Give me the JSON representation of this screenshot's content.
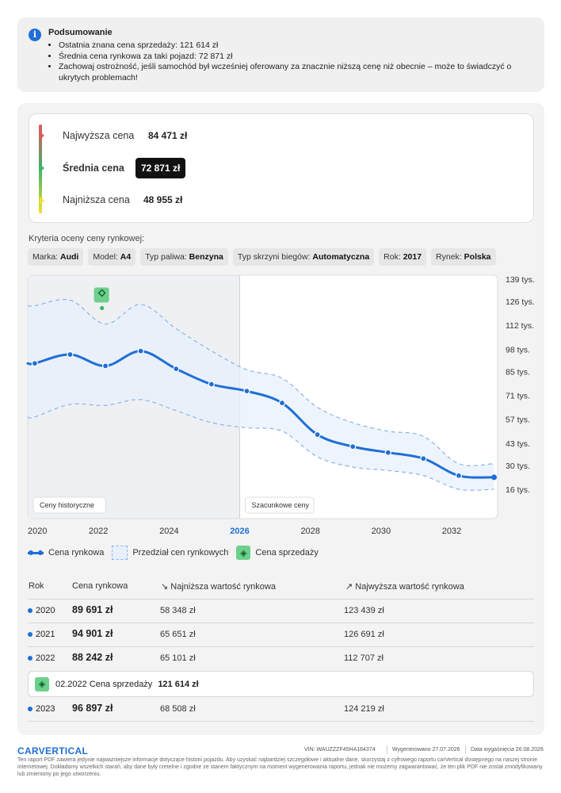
{
  "summary": {
    "title": "Podsumowanie",
    "items": [
      "Ostatnia znana cena sprzedaży: 121 614 zł",
      "Średnia cena rynkowa za taki pojazd: 72 871 zł",
      "Zachowaj ostrożność, jeśli samochód był wcześniej oferowany za znacznie niższą cenę niż obecnie – może to świadczyć o ukrytych problemach!"
    ]
  },
  "prices": {
    "highest_label": "Najwyższa cena",
    "highest_value": "84 471 zł",
    "average_label": "Średnia cena",
    "average_value": "72 871 zł",
    "lowest_label": "Najniższa cena",
    "lowest_value": "48 955 zł",
    "colors": {
      "high": "#e35656",
      "mid": "#3db36b",
      "low": "#f1df2c"
    }
  },
  "criteria": {
    "title": "Kryteria oceny ceny rynkowej:",
    "chips": [
      {
        "label": "Marka:",
        "value": "Audi"
      },
      {
        "label": "Model:",
        "value": "A4"
      },
      {
        "label": "Typ paliwa:",
        "value": "Benzyna"
      },
      {
        "label": "Typ skrzyni biegów:",
        "value": "Automatyczna"
      },
      {
        "label": "Rok:",
        "value": "2017"
      },
      {
        "label": "Rynek:",
        "value": "Polska"
      }
    ]
  },
  "chart_data": {
    "type": "line",
    "x_ticks": [
      "2020",
      "2022",
      "2024",
      "2026",
      "2028",
      "2030",
      "2032"
    ],
    "y_ticks": [
      "139 tys.",
      "126 tys.",
      "112 tys.",
      "98 tys.",
      "85 tys.",
      "71 tys.",
      "57 tys.",
      "43 tys.",
      "30 tys.",
      "16 tys."
    ],
    "y_tick_values": [
      139,
      126,
      112,
      98,
      85,
      71,
      57,
      43,
      30,
      16
    ],
    "xlim": [
      2020,
      2033.3
    ],
    "current_year": "2026",
    "historical_label": "Ceny historyczne",
    "forecast_label": "Szacunkowe ceny",
    "series": [
      {
        "name": "Cena rynkowa",
        "x": [
          2020,
          2020.2,
          2021.2,
          2022.2,
          2023.2,
          2024.2,
          2025.2,
          2026.2,
          2027.2,
          2028.2,
          2029.2,
          2030.2,
          2031.2,
          2032.2,
          2033.2
        ],
        "values": [
          89.7,
          89.7,
          94.9,
          88.2,
          96.9,
          86.5,
          77.5,
          73.5,
          66.5,
          48,
          41,
          37.5,
          34,
          24,
          23
        ]
      }
    ],
    "range": {
      "name": "Przedział cen rynkowych",
      "x": [
        2020,
        2020.2,
        2021.2,
        2022.2,
        2023.2,
        2024.2,
        2025.2,
        2026.2,
        2027.2,
        2028.2,
        2029.2,
        2030.2,
        2031.2,
        2032.2,
        2033.2
      ],
      "low": [
        58.3,
        58.3,
        65.7,
        65.1,
        68.5,
        62,
        55,
        52,
        50,
        35,
        29,
        27,
        24,
        16,
        16
      ],
      "high": [
        123.4,
        123.4,
        126.7,
        112.7,
        124.2,
        110,
        97,
        86,
        81,
        64,
        55,
        50,
        47,
        31,
        31
      ]
    },
    "sale_points": [
      {
        "name": "Cena sprzedaży",
        "x": 2022.1,
        "y": 121.6
      }
    ],
    "colors": {
      "line": "#1f6fd6",
      "band": "#e8f0fb",
      "band_edge": "#8ab4ea",
      "sale": "#6cd08a",
      "historical_bg": "#eef0f3"
    }
  },
  "legend": {
    "line": "Cena rynkowa",
    "band": "Przedział cen rynkowych",
    "sale": "Cena sprzedaży"
  },
  "table": {
    "headers": {
      "year": "Rok",
      "price": "Cena rynkowa",
      "low": "Najniższa wartość rynkowa",
      "high": "Najwyższa wartość rynkowa"
    },
    "rows": [
      {
        "year": "2020",
        "price": "89 691 zł",
        "low": "58 348 zł",
        "high": "123 439 zł"
      },
      {
        "year": "2021",
        "price": "94 901 zł",
        "low": "65 651 zł",
        "high": "126 691 zł"
      },
      {
        "year": "2022",
        "price": "88 242 zł",
        "low": "65 101 zł",
        "high": "112 707 zł"
      },
      {
        "year": "2023",
        "price": "96 897 zł",
        "low": "68 508 zł",
        "high": "124 219 zł"
      }
    ],
    "sale": {
      "date_label": "02.2022 Cena sprzedaży",
      "value": "121 614 zł"
    }
  },
  "footer": {
    "logo": "CARVERTICAL",
    "vin": "VIN:  WAUZZZF45HA164374",
    "generated": "Wygenerowano  27.07.2026",
    "expiry": "Data wygaśnięcia  26.08.2026",
    "note": "Ten raport PDF zawiera jedynie najważniejsze informacje dotyczące historii pojazdu. Aby uzyskać najbardziej szczegółowe i aktualne dane, skorzystaj z cyfrowego raportu carVertical dostępnego na naszej stronie internetowej. Dokładamy wszelkich starań, aby dane były rzetelne i zgodne ze stanem faktycznym na moment wygenerowania raportu, jednak nie możemy zagwarantować, że ten plik PDF nie został zmodyfikowany lub zmieniony po jego utworzeniu."
  }
}
